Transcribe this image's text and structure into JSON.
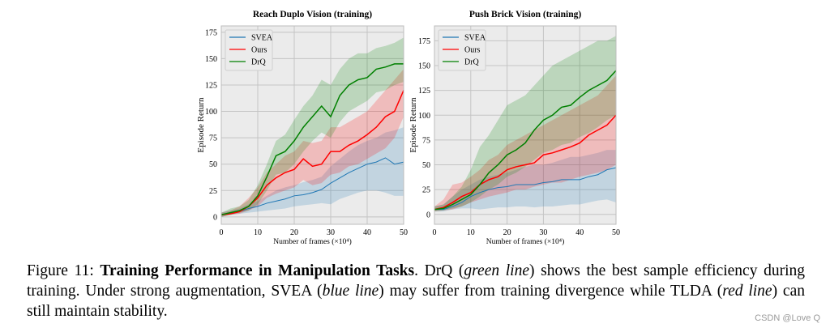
{
  "chart_data": [
    {
      "type": "line",
      "title": "Reach Duplo Vision (training)",
      "xlabel": "Number of frames (×10⁴)",
      "ylabel": "Episode Return",
      "xlim": [
        0,
        50
      ],
      "ylim": [
        -7,
        181
      ],
      "xticks": [
        0,
        10,
        20,
        30,
        40,
        50
      ],
      "yticks": [
        0,
        25,
        50,
        75,
        100,
        125,
        150,
        175
      ],
      "grid": true,
      "legend": "top-left",
      "x": [
        0,
        2.5,
        5,
        7.5,
        10,
        12.5,
        15,
        17.5,
        20,
        22.5,
        25,
        27.5,
        30,
        32.5,
        35,
        37.5,
        40,
        42.5,
        45,
        47.5,
        50
      ],
      "series": [
        {
          "name": "SVEA",
          "color": "#1f77b4",
          "values": [
            2,
            4,
            5,
            8,
            10,
            13,
            15,
            17,
            20,
            21,
            23,
            26,
            32,
            37,
            42,
            46,
            50,
            52,
            56,
            50,
            52
          ],
          "lower": [
            0,
            2,
            3,
            4,
            5,
            6,
            7,
            8,
            10,
            11,
            12,
            13,
            12,
            17,
            20,
            23,
            25,
            25,
            23,
            20,
            20
          ],
          "upper": [
            4,
            6,
            8,
            12,
            15,
            20,
            25,
            28,
            30,
            33,
            35,
            38,
            48,
            55,
            62,
            68,
            72,
            75,
            80,
            82,
            85
          ]
        },
        {
          "name": "Ours",
          "color": "#ff0000",
          "values": [
            2,
            3,
            5,
            10,
            18,
            30,
            37,
            42,
            45,
            55,
            48,
            50,
            62,
            62,
            68,
            72,
            78,
            85,
            95,
            100,
            120
          ],
          "lower": [
            0,
            2,
            3,
            6,
            10,
            18,
            22,
            25,
            28,
            35,
            30,
            32,
            40,
            42,
            48,
            50,
            55,
            60,
            65,
            75,
            95
          ],
          "upper": [
            4,
            6,
            10,
            18,
            28,
            42,
            50,
            58,
            62,
            72,
            70,
            72,
            85,
            85,
            90,
            95,
            100,
            110,
            120,
            130,
            140
          ]
        },
        {
          "name": "DrQ",
          "color": "#008000",
          "values": [
            2,
            4,
            6,
            10,
            20,
            38,
            58,
            62,
            72,
            85,
            95,
            105,
            95,
            115,
            125,
            130,
            132,
            140,
            142,
            145,
            145
          ],
          "lower": [
            0,
            2,
            4,
            6,
            12,
            25,
            40,
            42,
            50,
            62,
            72,
            80,
            75,
            90,
            100,
            105,
            110,
            118,
            120,
            125,
            128
          ],
          "upper": [
            4,
            8,
            10,
            16,
            30,
            50,
            72,
            78,
            92,
            105,
            115,
            130,
            125,
            140,
            150,
            155,
            155,
            160,
            162,
            165,
            170
          ]
        }
      ]
    },
    {
      "type": "line",
      "title": "Push Brick Vision (training)",
      "xlabel": "Number of frames (×10⁴)",
      "ylabel": "Episode Return",
      "xlim": [
        0,
        50
      ],
      "ylim": [
        -10,
        190
      ],
      "xticks": [
        0,
        10,
        20,
        30,
        40,
        50
      ],
      "yticks": [
        0,
        25,
        50,
        75,
        100,
        125,
        150,
        175
      ],
      "grid": true,
      "legend": "top-left",
      "x": [
        0,
        2.5,
        5,
        7.5,
        10,
        12.5,
        15,
        17.5,
        20,
        22.5,
        25,
        27.5,
        30,
        32.5,
        35,
        37.5,
        40,
        42.5,
        45,
        47.5,
        50
      ],
      "series": [
        {
          "name": "SVEA",
          "color": "#1f77b4",
          "values": [
            5,
            5,
            8,
            12,
            18,
            22,
            25,
            27,
            28,
            30,
            30,
            30,
            32,
            33,
            35,
            35,
            35,
            38,
            40,
            45,
            47
          ],
          "lower": [
            3,
            3,
            5,
            6,
            6,
            5,
            6,
            7,
            7,
            8,
            8,
            7,
            8,
            8,
            9,
            10,
            10,
            12,
            14,
            15,
            12
          ],
          "upper": [
            8,
            10,
            18,
            25,
            30,
            35,
            38,
            40,
            42,
            45,
            48,
            50,
            50,
            52,
            55,
            58,
            58,
            60,
            62,
            65,
            65
          ]
        },
        {
          "name": "Ours",
          "color": "#ff0000",
          "values": [
            5,
            7,
            12,
            18,
            22,
            30,
            35,
            38,
            45,
            48,
            50,
            52,
            60,
            62,
            65,
            68,
            72,
            80,
            85,
            90,
            100
          ],
          "lower": [
            3,
            4,
            5,
            8,
            12,
            15,
            18,
            20,
            22,
            25,
            25,
            28,
            30,
            32,
            32,
            35,
            38,
            40,
            42,
            45,
            50
          ],
          "upper": [
            8,
            15,
            30,
            32,
            38,
            45,
            55,
            60,
            70,
            75,
            80,
            85,
            90,
            95,
            100,
            105,
            110,
            115,
            120,
            130,
            140
          ]
        },
        {
          "name": "DrQ",
          "color": "#008000",
          "values": [
            5,
            6,
            10,
            15,
            20,
            30,
            42,
            50,
            60,
            65,
            72,
            85,
            95,
            100,
            108,
            110,
            118,
            125,
            130,
            135,
            145
          ],
          "lower": [
            3,
            4,
            6,
            8,
            12,
            18,
            25,
            30,
            38,
            42,
            48,
            55,
            62,
            65,
            70,
            72,
            78,
            82,
            88,
            95,
            100
          ],
          "upper": [
            8,
            10,
            18,
            28,
            45,
            68,
            80,
            95,
            110,
            115,
            120,
            130,
            140,
            150,
            155,
            160,
            165,
            170,
            175,
            175,
            180
          ]
        }
      ]
    }
  ],
  "caption": {
    "label": "Figure 11:",
    "title": "Training Performance in Manipulation Tasks",
    "part1": ". DrQ (",
    "green": "green line",
    "part2": ") shows the best sample efficiency during training. Under strong augmentation, SVEA (",
    "blue": "blue line",
    "part3": ") may suffer from training divergence while TLDA (",
    "red": "red line",
    "part4": ") can still maintain stability."
  },
  "watermark": "CSDN @Love Q"
}
